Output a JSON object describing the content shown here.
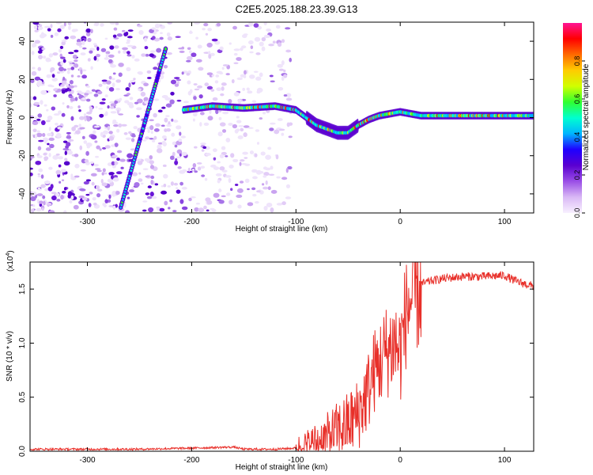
{
  "title": "C2E5.2025.188.23.39.G13",
  "chart_data": [
    {
      "type": "heatmap",
      "xlabel": "Height of straight line (km)",
      "ylabel": "Frequency (Hz)",
      "xlim": [
        -355,
        128
      ],
      "ylim": [
        -50,
        50
      ],
      "xticks": [
        -300,
        -200,
        -100,
        0,
        100
      ],
      "yticks": [
        -40,
        -20,
        0,
        20,
        40
      ],
      "colorbar": {
        "label": "Normalized spectral amplitude",
        "range": [
          0.0,
          1.0
        ],
        "ticks": [
          0.0,
          0.2,
          0.4,
          0.6,
          0.8
        ],
        "tick_labels": [
          "0.0",
          "0.2",
          "0.4",
          "0.6",
          "0.8"
        ],
        "colors": [
          "#f8f0ff",
          "#d9b8f5",
          "#9a4ee6",
          "#5a00d0",
          "#1f00ff",
          "#00b4ff",
          "#00ffd0",
          "#30ff30",
          "#d0ff00",
          "#ffcc00",
          "#ff6a00",
          "#ff0000",
          "#ff1493"
        ]
      },
      "features": {
        "diagonal_trace": {
          "x": [
            -268,
            -225
          ],
          "y": [
            -47,
            36
          ]
        },
        "ridge": {
          "x": [
            -208,
            -180,
            -150,
            -120,
            -100,
            -90,
            -80,
            -70,
            -60,
            -50,
            -40,
            -30,
            -20,
            -10,
            0,
            20,
            50,
            80,
            110,
            128
          ],
          "y": [
            4,
            6,
            5,
            6,
            4,
            0,
            -4,
            -6,
            -8,
            -8,
            -4,
            -1,
            1,
            2,
            3,
            1,
            1,
            1,
            1,
            1
          ]
        }
      }
    },
    {
      "type": "line",
      "xlabel": "Height of straight line (km)",
      "ylabel": "SNR (10 * v/v)",
      "yscale_label": "(x10",
      "yscale_exp": "4",
      "xlim": [
        -355,
        128
      ],
      "ylim": [
        0,
        1.75
      ],
      "xticks": [
        -300,
        -200,
        -100,
        0,
        100
      ],
      "yticks": [
        0.0,
        0.5,
        1.0,
        1.5
      ],
      "ytick_labels": [
        "0.0",
        "0.5",
        "1.0",
        "1.5"
      ],
      "series": [
        {
          "color": "#e8302a",
          "x": [
            -355,
            -300,
            -250,
            -200,
            -160,
            -150,
            -120,
            -100,
            -90,
            -80,
            -70,
            -60,
            -50,
            -40,
            -35,
            -30,
            -25,
            -20,
            -15,
            -10,
            -5,
            0,
            5,
            10,
            15,
            20,
            30,
            40,
            60,
            80,
            100,
            110,
            120,
            128
          ],
          "y": [
            0.02,
            0.02,
            0.02,
            0.03,
            0.04,
            0.02,
            0.02,
            0.03,
            0.06,
            0.1,
            0.15,
            0.22,
            0.28,
            0.38,
            0.5,
            0.62,
            0.78,
            0.85,
            0.95,
            1.0,
            1.05,
            0.95,
            1.3,
            1.45,
            1.5,
            1.55,
            1.58,
            1.6,
            1.62,
            1.62,
            1.63,
            1.58,
            1.55,
            1.53
          ]
        }
      ]
    }
  ]
}
